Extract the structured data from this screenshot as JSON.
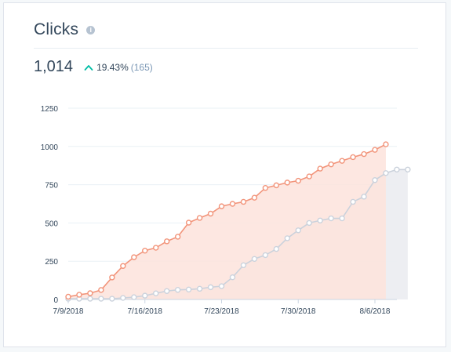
{
  "header": {
    "title": "Clicks",
    "info_icon": "info-icon",
    "value": "1,014",
    "change_percent": "19.43%",
    "change_count": "(165)",
    "trend_icon": "up-chevron-icon",
    "trend_color": "#00bda5"
  },
  "chart_data": {
    "type": "area",
    "title": "",
    "xlabel": "",
    "ylabel": "",
    "ylim": [
      0,
      1250
    ],
    "yticks": [
      "0",
      "250",
      "500",
      "750",
      "1000",
      "1250"
    ],
    "xticks": [
      {
        "label": "7/9/2018",
        "day": 0
      },
      {
        "label": "7/16/2018",
        "day": 7
      },
      {
        "label": "7/23/2018",
        "day": 14
      },
      {
        "label": "7/30/2018",
        "day": 21
      },
      {
        "label": "8/6/2018",
        "day": 28
      }
    ],
    "grid": true,
    "legend": "none",
    "colors": {
      "current_line": "#f2947a",
      "current_fill": "#fde3dc",
      "previous_line": "#cbd2dc",
      "previous_fill": "#ecedf1"
    },
    "series": [
      {
        "values": [
          18,
          31,
          41,
          62,
          144,
          219,
          276,
          319,
          338,
          380,
          410,
          502,
          533,
          561,
          609,
          625,
          638,
          665,
          729,
          746,
          764,
          776,
          804,
          855,
          883,
          906,
          930,
          950,
          978,
          1014
        ]
      },
      {
        "values": [
          5,
          5,
          5,
          5,
          5,
          10,
          15,
          25,
          40,
          55,
          63,
          65,
          70,
          80,
          87,
          145,
          224,
          265,
          290,
          330,
          400,
          452,
          500,
          516,
          530,
          530,
          638,
          672,
          780,
          826,
          849,
          849
        ]
      }
    ]
  }
}
